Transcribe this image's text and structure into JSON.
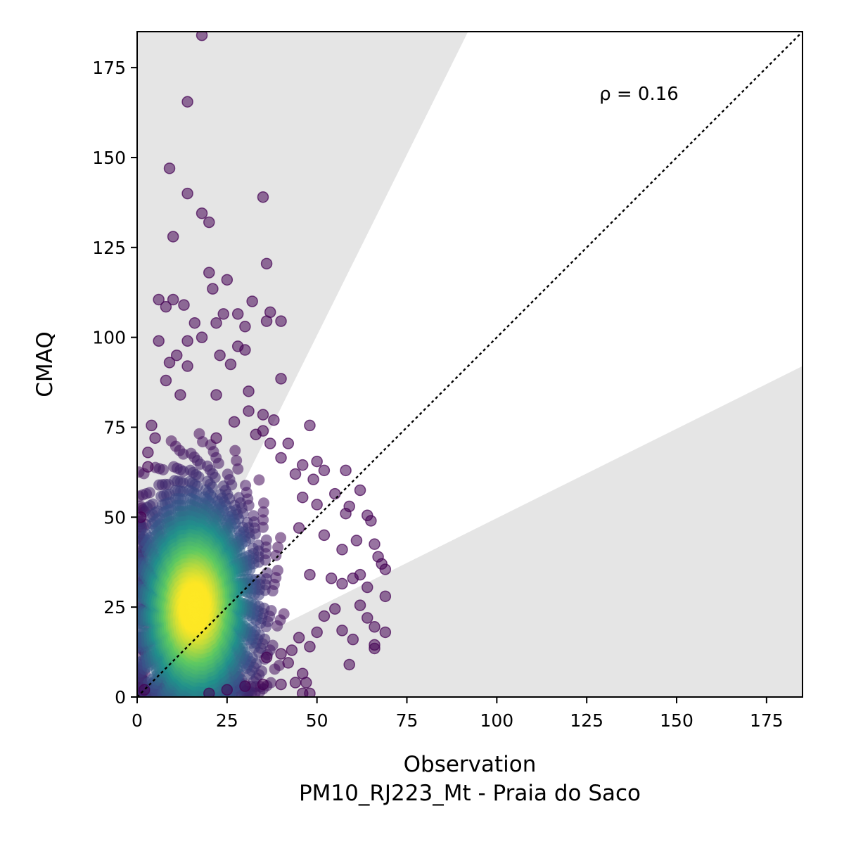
{
  "chart_data": {
    "type": "scatter",
    "title": "",
    "xlabel": "Observation",
    "xlabel_sub": "PM10_RJ223_Mt - Praia do Saco",
    "ylabel": "CMAQ",
    "xlim": [
      0,
      185
    ],
    "ylim": [
      0,
      185
    ],
    "xticks": [
      0,
      25,
      50,
      75,
      100,
      125,
      150,
      175
    ],
    "yticks": [
      0,
      25,
      50,
      75,
      100,
      125,
      150,
      175
    ],
    "annotation": "ρ = 0.16",
    "annotation_at": [
      128.5,
      166
    ],
    "reference_line": {
      "style": "dotted",
      "color": "#000000",
      "from": [
        0,
        0
      ],
      "to": [
        185,
        185
      ]
    },
    "shaded_regions": [
      {
        "name": "upper-band",
        "color": "#e5e5e5",
        "vertices": [
          [
            0,
            0
          ],
          [
            0,
            185
          ],
          [
            92,
            185
          ]
        ]
      },
      {
        "name": "lower-band",
        "color": "#e5e5e5",
        "vertices": [
          [
            0,
            0
          ],
          [
            185,
            0
          ],
          [
            185,
            92
          ]
        ]
      }
    ],
    "marker_alpha": 0.55,
    "colormap": [
      "#440154",
      "#3b528b",
      "#21918c",
      "#5ec962",
      "#fde725"
    ],
    "density_core": {
      "center": [
        16,
        25
      ],
      "spread": [
        9,
        17
      ]
    },
    "points": [
      [
        18,
        184
      ],
      [
        14,
        165.5
      ],
      [
        9,
        147
      ],
      [
        35,
        139
      ],
      [
        14,
        140
      ],
      [
        18,
        134.5
      ],
      [
        20,
        132
      ],
      [
        10,
        128
      ],
      [
        36,
        120.5
      ],
      [
        20,
        118
      ],
      [
        25,
        116
      ],
      [
        21,
        113.5
      ],
      [
        6,
        110.5
      ],
      [
        10,
        110.5
      ],
      [
        13,
        109
      ],
      [
        8,
        108.5
      ],
      [
        32,
        110
      ],
      [
        37,
        107
      ],
      [
        28,
        106.5
      ],
      [
        24,
        106.5
      ],
      [
        40,
        104.5
      ],
      [
        36,
        104.5
      ],
      [
        30,
        103
      ],
      [
        22,
        104
      ],
      [
        16,
        104
      ],
      [
        18,
        100
      ],
      [
        14,
        99
      ],
      [
        6,
        99
      ],
      [
        28,
        97.5
      ],
      [
        30,
        96.5
      ],
      [
        23,
        95
      ],
      [
        11,
        95
      ],
      [
        9,
        93
      ],
      [
        26,
        92.5
      ],
      [
        14,
        92
      ],
      [
        40,
        88.5
      ],
      [
        8,
        88
      ],
      [
        31,
        85
      ],
      [
        22,
        84
      ],
      [
        12,
        84
      ],
      [
        31,
        79.5
      ],
      [
        35,
        78.5
      ],
      [
        38,
        77
      ],
      [
        27,
        76.5
      ],
      [
        4,
        75.5
      ],
      [
        48,
        75.5
      ],
      [
        35,
        74
      ],
      [
        33,
        73
      ],
      [
        22,
        72
      ],
      [
        5,
        72
      ],
      [
        42,
        70.5
      ],
      [
        37,
        70.5
      ],
      [
        3,
        68
      ],
      [
        40,
        66.5
      ],
      [
        50,
        65.5
      ],
      [
        46,
        64.5
      ],
      [
        58,
        63
      ],
      [
        52,
        63
      ],
      [
        3,
        64
      ],
      [
        44,
        62
      ],
      [
        49,
        60.5
      ],
      [
        62,
        57.5
      ],
      [
        55,
        56.5
      ],
      [
        46,
        55.5
      ],
      [
        50,
        53.5
      ],
      [
        59,
        53
      ],
      [
        64,
        50.5
      ],
      [
        58,
        51
      ],
      [
        1,
        50
      ],
      [
        65,
        49
      ],
      [
        45,
        47
      ],
      [
        52,
        45
      ],
      [
        61,
        43.5
      ],
      [
        66,
        42.5
      ],
      [
        57,
        41
      ],
      [
        67,
        39
      ],
      [
        68,
        37
      ],
      [
        69,
        35.5
      ],
      [
        62,
        34
      ],
      [
        60,
        33
      ],
      [
        54,
        33
      ],
      [
        48,
        34
      ],
      [
        57,
        31.5
      ],
      [
        64,
        30.5
      ],
      [
        69,
        28
      ],
      [
        62,
        25.5
      ],
      [
        55,
        24.5
      ],
      [
        52,
        22.5
      ],
      [
        64,
        22
      ],
      [
        66,
        19.5
      ],
      [
        57,
        18.5
      ],
      [
        50,
        18
      ],
      [
        69,
        18
      ],
      [
        60,
        16
      ],
      [
        66,
        14.5
      ],
      [
        45,
        16.5
      ],
      [
        48,
        14
      ],
      [
        66,
        13.5
      ],
      [
        43,
        13
      ],
      [
        59,
        9
      ],
      [
        40,
        12
      ],
      [
        36,
        11
      ],
      [
        42,
        9.5
      ],
      [
        46,
        6.5
      ],
      [
        44,
        4
      ],
      [
        40,
        3.5
      ],
      [
        35,
        3.5
      ],
      [
        47,
        4
      ],
      [
        48,
        1
      ],
      [
        46,
        1
      ],
      [
        30,
        3
      ],
      [
        25,
        2
      ],
      [
        20,
        1
      ],
      [
        2,
        2
      ]
    ]
  }
}
